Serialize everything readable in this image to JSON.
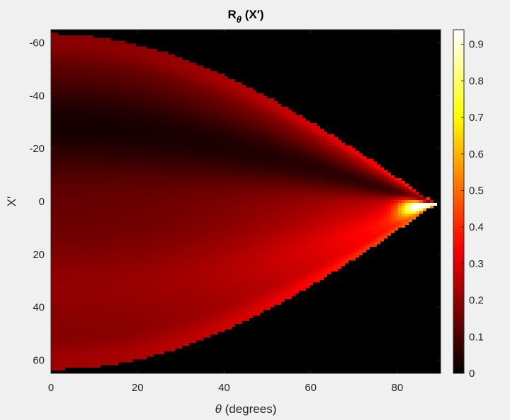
{
  "chart_data": {
    "type": "heatmap",
    "title": {
      "main": "R",
      "subscript": "θ",
      "suffix": " (X′)"
    },
    "xlabel": {
      "symbol": "θ",
      "text": " (degrees)"
    },
    "ylabel": "X′",
    "x_range": [
      0,
      90
    ],
    "y_range": [
      -65,
      65
    ],
    "y_reversed": true,
    "x_ticks": [
      0,
      20,
      40,
      60,
      80
    ],
    "y_ticks": [
      -60,
      -40,
      -20,
      0,
      20,
      40,
      60
    ],
    "colorbar": {
      "colormap": "hot",
      "range": [
        0,
        0.94
      ],
      "ticks": [
        0,
        0.1,
        0.2,
        0.3,
        0.4,
        0.5,
        0.6,
        0.7,
        0.8,
        0.9
      ]
    },
    "field_extent": {
      "half_width_at_x0": 63.5,
      "tip_theta": 89,
      "tip_x": 1
    },
    "intensity_description": [
      {
        "x_prime": -60,
        "value_at_theta0": 0.17
      },
      {
        "x_prime": -45,
        "value_at_theta0": 0.1
      },
      {
        "x_prime": -20,
        "value_at_theta0": 0.04
      },
      {
        "x_prime": 0,
        "value_at_theta0": 0.15
      },
      {
        "x_prime": 20,
        "value_at_theta0": 0.17
      },
      {
        "x_prime": 40,
        "value_at_theta0": 0.19
      },
      {
        "x_prime": 60,
        "value_at_theta0": 0.21
      }
    ],
    "peak": {
      "theta": 86,
      "x_prime": 2,
      "value": 0.94
    }
  }
}
